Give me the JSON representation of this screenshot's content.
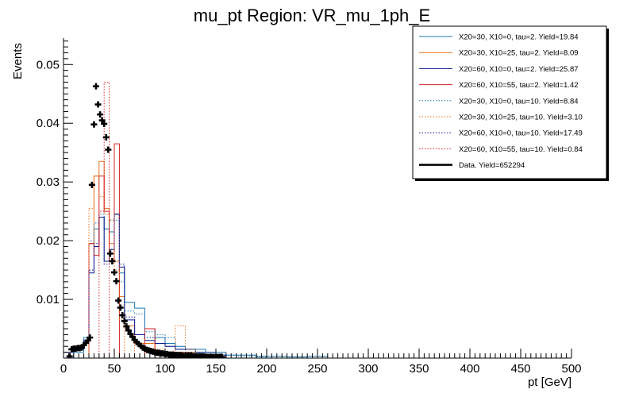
{
  "chart_data": {
    "type": "line",
    "title": "mu_pt Region: VR_mu_1ph_E",
    "xlabel": "pt [GeV]",
    "ylabel": "Events",
    "xlim": [
      0,
      500
    ],
    "ylim": [
      0,
      0.0545
    ],
    "x_ticks": [
      0,
      50,
      100,
      150,
      200,
      250,
      300,
      350,
      400,
      450,
      500
    ],
    "y_ticks": [
      0.01,
      0.02,
      0.03,
      0.04,
      0.05
    ],
    "x_tick_labels": [
      "0",
      "50",
      "100",
      "150",
      "200",
      "250",
      "300",
      "350",
      "400",
      "450",
      "500"
    ],
    "y_tick_labels": [
      "0.01",
      "0.02",
      "0.03",
      "0.04",
      "0.05"
    ],
    "legend_position": "top-right",
    "series": [
      {
        "name": "X20=30, X10=0, tau=2. Yield=19.84",
        "color": "#1f77b4",
        "style": "solid",
        "kind": "hist",
        "edges": [
          0,
          10,
          20,
          25,
          30,
          35,
          40,
          45,
          50,
          55,
          60,
          70,
          80,
          90,
          100,
          110,
          120,
          130,
          140,
          150,
          160,
          170,
          180,
          190,
          200,
          220,
          240,
          260
        ],
        "values": [
          0,
          0.001,
          0.0035,
          0.0195,
          0.022,
          0.024,
          0.022,
          0.0215,
          0.0245,
          0.0145,
          0.0095,
          0.0085,
          0.005,
          0.0035,
          0.0025,
          0.002,
          0.0015,
          0.0015,
          0.001,
          0.001,
          0.0005,
          0.0005,
          0.0005,
          0.0003,
          0.0003,
          0.0002,
          0.0003
        ]
      },
      {
        "name": "X20=30, X10=25, tau=2. Yield=8.09",
        "color": "#e8711a",
        "style": "solid",
        "kind": "hist",
        "edges": [
          0,
          20,
          25,
          30,
          35,
          40,
          45,
          50,
          55,
          60,
          70,
          80,
          90,
          100,
          110,
          120,
          130,
          140,
          150
        ],
        "values": [
          0,
          0.0,
          0.0195,
          0.031,
          0.0335,
          0.0255,
          0.0195,
          0.0165,
          0.0105,
          0.0055,
          0.0025,
          0.0025,
          0.001,
          0.0005,
          0.001,
          0.001,
          0.0005,
          0.0005
        ]
      },
      {
        "name": "X20=60, X10=0, tau=2. Yield=25.87",
        "color": "#0b1a8c",
        "style": "solid",
        "kind": "hist",
        "edges": [
          0,
          10,
          20,
          25,
          30,
          35,
          40,
          45,
          50,
          55,
          60,
          70,
          80,
          90,
          100,
          110,
          120,
          130,
          140,
          150,
          160
        ],
        "values": [
          0.001,
          0.0015,
          0.003,
          0.0145,
          0.019,
          0.024,
          0.0165,
          0.0185,
          0.0245,
          0.0155,
          0.0065,
          0.004,
          0.003,
          0.0025,
          0.002,
          0.0015,
          0.0015,
          0.001,
          0.001,
          0.0005
        ]
      },
      {
        "name": "X20=60, X10=55, tau=2. Yield=1.42",
        "color": "#d62020",
        "style": "solid",
        "kind": "hist",
        "edges": [
          0,
          20,
          25,
          30,
          35,
          40,
          45,
          50,
          55,
          60,
          70,
          80,
          90,
          100,
          110,
          120,
          130,
          140,
          150,
          160
        ],
        "values": [
          0,
          0.0,
          0.0195,
          0.0175,
          0.031,
          0.025,
          0.0165,
          0.0365,
          0.0,
          0.0,
          0.0,
          0.005,
          0.0,
          0.0,
          0.0,
          0.0,
          0.0,
          0.0,
          0.0
        ]
      },
      {
        "name": "X20=30, X10=0, tau=10. Yield=8.84",
        "color": "#1f77b4",
        "style": "dotted",
        "kind": "hist",
        "edges": [
          0,
          10,
          20,
          25,
          30,
          35,
          40,
          45,
          50,
          55,
          60,
          70,
          80,
          90,
          100,
          110,
          120,
          130,
          140,
          150,
          160,
          170,
          180,
          190,
          200
        ],
        "values": [
          0,
          0.0015,
          0.003,
          0.02,
          0.023,
          0.0245,
          0.022,
          0.0235,
          0.0235,
          0.013,
          0.008,
          0.0075,
          0.0045,
          0.004,
          0.0035,
          0.002,
          0.0015,
          0.001,
          0.001,
          0.0005,
          0.0005,
          0.0003,
          0.0003,
          0.0002
        ]
      },
      {
        "name": "X20=30, X10=25, tau=10. Yield=3.10",
        "color": "#e8711a",
        "style": "dotted",
        "kind": "hist",
        "edges": [
          0,
          20,
          25,
          30,
          35,
          40,
          45,
          50,
          55,
          60,
          70,
          80,
          90,
          100,
          110,
          120,
          130,
          140,
          150
        ],
        "values": [
          0,
          0.0,
          0.0255,
          0.031,
          0.0275,
          0.0245,
          0.0235,
          0.015,
          0.0065,
          0.0,
          0.0025,
          0.0025,
          0.0015,
          0.001,
          0.0055,
          0.0015,
          0.0,
          0.0
        ]
      },
      {
        "name": "X20=60, X10=0, tau=10. Yield=17.49",
        "color": "#0b1a8c",
        "style": "dotted",
        "kind": "hist",
        "edges": [
          0,
          10,
          20,
          25,
          30,
          35,
          40,
          45,
          50,
          55,
          60,
          70,
          80,
          90,
          100,
          110,
          120,
          130,
          140,
          150,
          160
        ],
        "values": [
          0.001,
          0.0015,
          0.003,
          0.015,
          0.0195,
          0.024,
          0.016,
          0.0185,
          0.0245,
          0.016,
          0.007,
          0.004,
          0.0035,
          0.0025,
          0.002,
          0.0015,
          0.001,
          0.001,
          0.0005,
          0.0005
        ]
      },
      {
        "name": "X20=60, X10=55, tau=10. Yield=0.84",
        "color": "#d62020",
        "style": "dotted",
        "kind": "hist",
        "edges": [
          0,
          20,
          25,
          30,
          35,
          40,
          45,
          50,
          55,
          60,
          70,
          80,
          90,
          100,
          110,
          120,
          130,
          140,
          150
        ],
        "values": [
          0,
          0.0,
          0.0,
          0.0,
          0.025,
          0.047,
          0.0,
          0.0,
          0.0,
          0.0,
          0.0,
          0.0,
          0.0,
          0.0,
          0.0,
          0.0,
          0.0,
          0.0
        ]
      },
      {
        "name": "Data. Yield=652294",
        "color": "#000000",
        "style": "solid",
        "kind": "points",
        "x": [
          6,
          8,
          10,
          12,
          14,
          16,
          18,
          20,
          22,
          24,
          26,
          28,
          30,
          32,
          34,
          36,
          38,
          40,
          42,
          44,
          46,
          48,
          50,
          52,
          54,
          56,
          58,
          60,
          62,
          64,
          66,
          68,
          70,
          72,
          74,
          76,
          78,
          80,
          82,
          84,
          86,
          88,
          90,
          92,
          94,
          96,
          98,
          100,
          102,
          104,
          106,
          108,
          110,
          112,
          114,
          116,
          118,
          120,
          122,
          124,
          126,
          128,
          130,
          132,
          134,
          136,
          138,
          140,
          142,
          144,
          146,
          148,
          150,
          152,
          154,
          156
        ],
        "y": [
          0.0003,
          0.0015,
          0.0016,
          0.0016,
          0.0017,
          0.0017,
          0.0018,
          0.0022,
          0.0026,
          0.003,
          0.0035,
          0.0295,
          0.0398,
          0.0463,
          0.0432,
          0.0415,
          0.0405,
          0.0399,
          0.0376,
          0.0355,
          0.0178,
          0.0165,
          0.0146,
          0.0131,
          0.0098,
          0.0086,
          0.0073,
          0.0063,
          0.0054,
          0.0047,
          0.0041,
          0.0036,
          0.0031,
          0.0027,
          0.0024,
          0.0021,
          0.0018,
          0.0016,
          0.0014,
          0.0013,
          0.0012,
          0.0011,
          0.001,
          0.0009,
          0.0009,
          0.0008,
          0.0008,
          0.0007,
          0.0007,
          0.0006,
          0.0006,
          0.0006,
          0.0005,
          0.0005,
          0.0005,
          0.0005,
          0.0004,
          0.0004,
          0.0004,
          0.0004,
          0.0004,
          0.0003,
          0.0003,
          0.0003,
          0.0003,
          0.0003,
          0.0003,
          0.0002,
          0.0002,
          0.0002,
          0.0002,
          0.0002,
          0.0002,
          0.0002,
          0.0002,
          0.0002
        ]
      }
    ]
  }
}
